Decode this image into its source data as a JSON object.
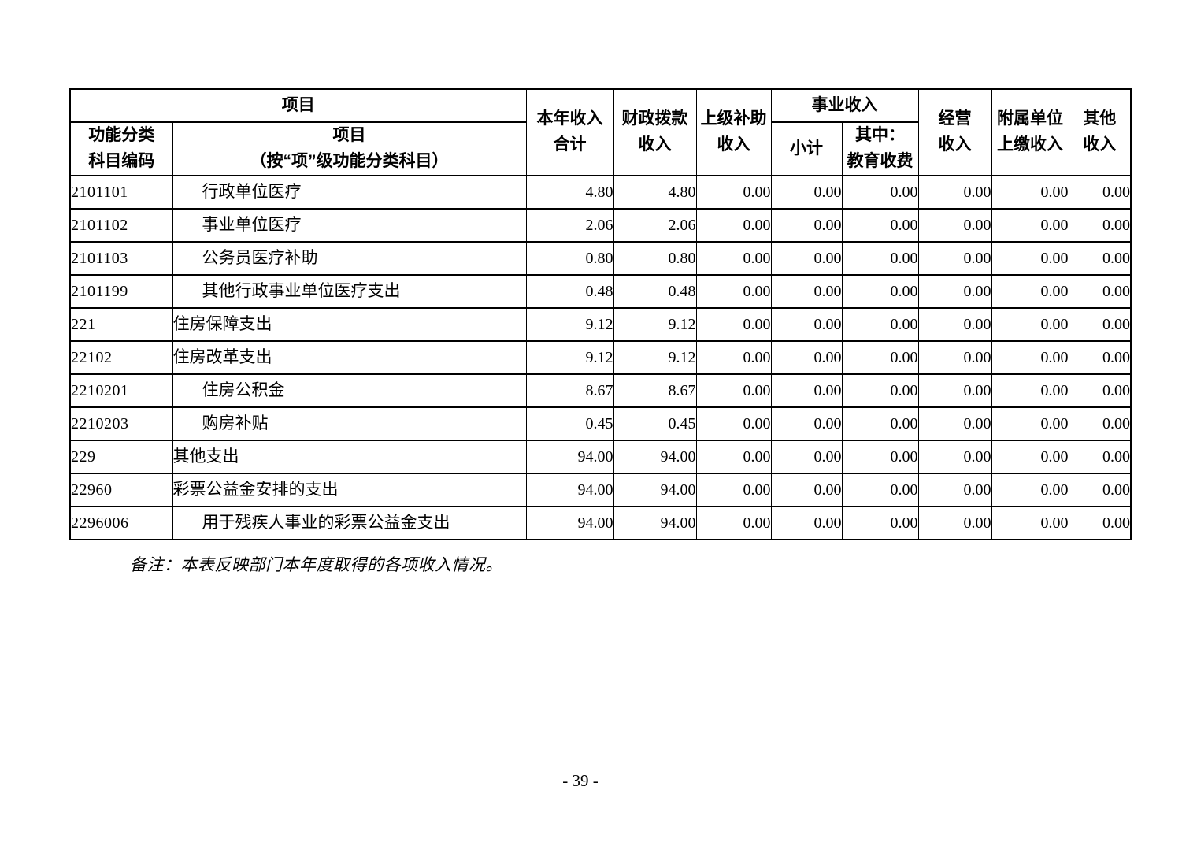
{
  "document": {
    "note": "备注：本表反映部门本年度取得的各项收入情况。",
    "page_number": "- 39 -"
  },
  "table": {
    "headers": {
      "project_group": "项目",
      "code": "功能分类\n科目编码",
      "item": "项目\n（按“项”级功能分类科目）",
      "annual_total": "本年收入\n合计",
      "fiscal_appropriation": "财政拨款\n收入",
      "superior_subsidy": "上级补助\n收入",
      "business_income_group": "事业收入",
      "business_subtotal": "小计",
      "business_education": "其中：\n教育收费",
      "operating_income": "经营\n收入",
      "affiliated_units": "附属单位\n上缴收入",
      "other_income": "其他\n收入"
    },
    "rows": [
      {
        "code": "2101101",
        "name": "行政单位医疗",
        "indent": true,
        "values": [
          "4.80",
          "4.80",
          "0.00",
          "0.00",
          "0.00",
          "0.00",
          "0.00",
          "0.00"
        ]
      },
      {
        "code": "2101102",
        "name": "事业单位医疗",
        "indent": true,
        "values": [
          "2.06",
          "2.06",
          "0.00",
          "0.00",
          "0.00",
          "0.00",
          "0.00",
          "0.00"
        ]
      },
      {
        "code": "2101103",
        "name": "公务员医疗补助",
        "indent": true,
        "values": [
          "0.80",
          "0.80",
          "0.00",
          "0.00",
          "0.00",
          "0.00",
          "0.00",
          "0.00"
        ]
      },
      {
        "code": "2101199",
        "name": "其他行政事业单位医疗支出",
        "indent": true,
        "values": [
          "0.48",
          "0.48",
          "0.00",
          "0.00",
          "0.00",
          "0.00",
          "0.00",
          "0.00"
        ]
      },
      {
        "code": "221",
        "name": "住房保障支出",
        "indent": false,
        "values": [
          "9.12",
          "9.12",
          "0.00",
          "0.00",
          "0.00",
          "0.00",
          "0.00",
          "0.00"
        ]
      },
      {
        "code": "22102",
        "name": "住房改革支出",
        "indent": false,
        "values": [
          "9.12",
          "9.12",
          "0.00",
          "0.00",
          "0.00",
          "0.00",
          "0.00",
          "0.00"
        ]
      },
      {
        "code": "2210201",
        "name": "住房公积金",
        "indent": true,
        "values": [
          "8.67",
          "8.67",
          "0.00",
          "0.00",
          "0.00",
          "0.00",
          "0.00",
          "0.00"
        ]
      },
      {
        "code": "2210203",
        "name": "购房补贴",
        "indent": true,
        "values": [
          "0.45",
          "0.45",
          "0.00",
          "0.00",
          "0.00",
          "0.00",
          "0.00",
          "0.00"
        ]
      },
      {
        "code": "229",
        "name": "其他支出",
        "indent": false,
        "values": [
          "94.00",
          "94.00",
          "0.00",
          "0.00",
          "0.00",
          "0.00",
          "0.00",
          "0.00"
        ]
      },
      {
        "code": "22960",
        "name": "彩票公益金安排的支出",
        "indent": false,
        "values": [
          "94.00",
          "94.00",
          "0.00",
          "0.00",
          "0.00",
          "0.00",
          "0.00",
          "0.00"
        ]
      },
      {
        "code": "2296006",
        "name": "用于残疾人事业的彩票公益金支出",
        "indent": true,
        "values": [
          "94.00",
          "94.00",
          "0.00",
          "0.00",
          "0.00",
          "0.00",
          "0.00",
          "0.00"
        ]
      }
    ]
  }
}
